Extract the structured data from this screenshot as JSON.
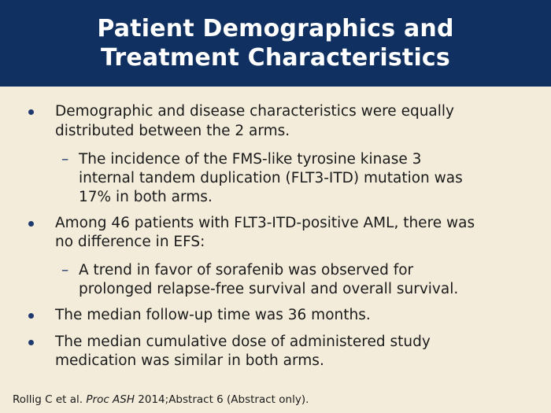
{
  "slide": {
    "title_lines": [
      "Patient Demographics and",
      "Treatment Characteristics"
    ],
    "bullets": {
      "b1": {
        "lines": [
          "Demographic and disease characteristics were equally",
          "distributed between the 2 arms."
        ],
        "sub": {
          "lines": [
            "The incidence of the FMS-like tyrosine kinase 3",
            "internal tandem duplication (FLT3-ITD) mutation was",
            "17% in both arms."
          ]
        }
      },
      "b2": {
        "lines": [
          "Among 46 patients with FLT3-ITD-positive AML, there was",
          "no difference in EFS:"
        ],
        "sub": {
          "lines": [
            "A trend in favor of sorafenib was observed for",
            "prolonged relapse-free survival and overall survival."
          ]
        }
      },
      "b3": {
        "lines": [
          "The median follow-up time was 36 months."
        ]
      },
      "b4": {
        "lines": [
          "The median cumulative dose of administered study",
          "medication was similar in both arms."
        ]
      }
    },
    "dash_glyph": "–",
    "footer": {
      "prefix": "Rollig C et al. ",
      "journal": "Proc ASH",
      "suffix": " 2014;Abstract 6 (Abstract only)."
    }
  },
  "colors": {
    "header_bg": "#0f3060",
    "slide_bg": "#f3ecda",
    "bullet_color": "#1f3a6e"
  }
}
